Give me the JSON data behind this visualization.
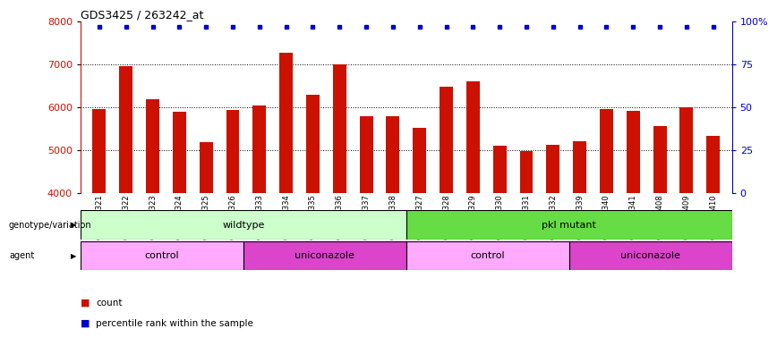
{
  "title": "GDS3425 / 263242_at",
  "samples": [
    "GSM299321",
    "GSM299322",
    "GSM299323",
    "GSM299324",
    "GSM299325",
    "GSM299326",
    "GSM299333",
    "GSM299334",
    "GSM299335",
    "GSM299336",
    "GSM299337",
    "GSM299338",
    "GSM299327",
    "GSM299328",
    "GSM299329",
    "GSM299330",
    "GSM299331",
    "GSM299332",
    "GSM299339",
    "GSM299340",
    "GSM299341",
    "GSM299408",
    "GSM299409",
    "GSM299410"
  ],
  "bar_values": [
    5950,
    6950,
    6180,
    5900,
    5190,
    5940,
    6040,
    7280,
    6290,
    7010,
    5790,
    5790,
    5530,
    6480,
    6600,
    5100,
    4980,
    5130,
    5200,
    5970,
    5920,
    5570,
    6000,
    5340
  ],
  "percentile_values": [
    97,
    97,
    97,
    97,
    97,
    97,
    97,
    97,
    97,
    97,
    97,
    97,
    97,
    97,
    97,
    97,
    97,
    97,
    97,
    97,
    97,
    97,
    97,
    97
  ],
  "bar_color": "#cc1100",
  "percentile_color": "#0000cc",
  "ylim_left": [
    4000,
    8000
  ],
  "ylim_right": [
    0,
    100
  ],
  "yticks_left": [
    4000,
    5000,
    6000,
    7000,
    8000
  ],
  "yticks_right": [
    0,
    25,
    50,
    75,
    100
  ],
  "ytick_labels_right": [
    "0",
    "25",
    "50",
    "75",
    "100%"
  ],
  "grid_values": [
    5000,
    6000,
    7000
  ],
  "background_color": "#ffffff",
  "genotype_groups": [
    {
      "label": "wildtype",
      "start": 0,
      "end": 12,
      "color": "#ccffcc"
    },
    {
      "label": "pkl mutant",
      "start": 12,
      "end": 24,
      "color": "#66dd44"
    }
  ],
  "agent_groups": [
    {
      "label": "control",
      "start": 0,
      "end": 6,
      "color": "#ffaaff"
    },
    {
      "label": "uniconazole",
      "start": 6,
      "end": 12,
      "color": "#dd44cc"
    },
    {
      "label": "control",
      "start": 12,
      "end": 18,
      "color": "#ffaaff"
    },
    {
      "label": "uniconazole",
      "start": 18,
      "end": 24,
      "color": "#dd44cc"
    }
  ],
  "legend_count_color": "#cc1100",
  "legend_percentile_color": "#0000cc"
}
